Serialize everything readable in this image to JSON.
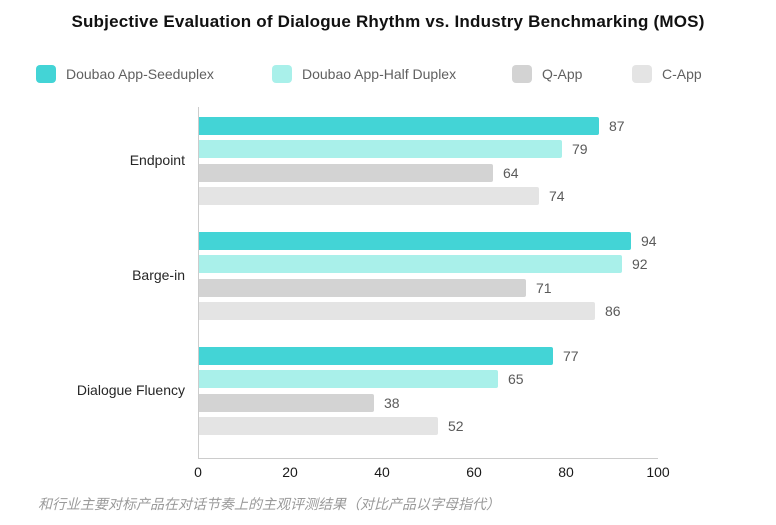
{
  "title": "Subjective Evaluation of Dialogue Rhythm vs. Industry Benchmarking (MOS)",
  "caption": "和行业主要对标产品在对话节奏上的主观评测结果（对比产品以字母指代）",
  "colors": {
    "series_teal": "#43d4d6",
    "series_light_cyan": "#a9f0ea",
    "series_gray": "#d3d3d3",
    "series_light_gray": "#e4e4e4",
    "axis_line": "#cccccc",
    "title_text": "#111111",
    "value_text": "#5a5a5a",
    "caption_text": "#9a9a9a"
  },
  "chart_data": {
    "type": "bar",
    "orientation": "horizontal",
    "title": "Subjective Evaluation of Dialogue Rhythm vs. Industry Benchmarking (MOS)",
    "categories": [
      "Endpoint",
      "Barge-in",
      "Dialogue Fluency"
    ],
    "series": [
      {
        "name": "Doubao App-Seeduplex",
        "color": "#43d4d6",
        "values": [
          87,
          94,
          77
        ]
      },
      {
        "name": "Doubao App-Half Duplex",
        "color": "#a9f0ea",
        "values": [
          79,
          92,
          65
        ]
      },
      {
        "name": "Q-App",
        "color": "#d3d3d3",
        "values": [
          64,
          71,
          38
        ]
      },
      {
        "name": "C-App",
        "color": "#e4e4e4",
        "values": [
          74,
          86,
          52
        ]
      }
    ],
    "xlim": [
      0,
      100
    ],
    "x_ticks": [
      0,
      20,
      40,
      60,
      80,
      100
    ],
    "xlabel": "",
    "ylabel": "",
    "grid": false,
    "legend_position": "top",
    "value_labels": true
  }
}
